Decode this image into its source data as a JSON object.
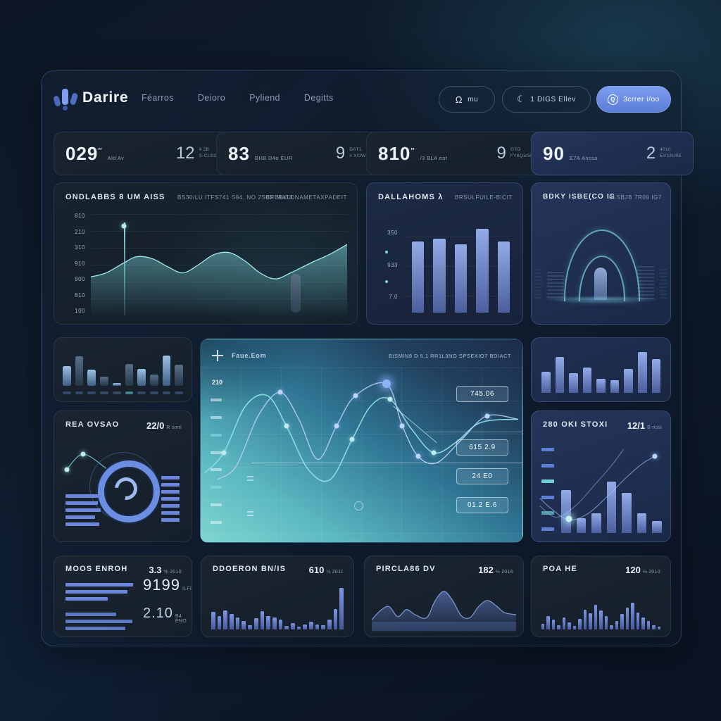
{
  "brand": {
    "name": "Darire"
  },
  "nav": {
    "items": [
      {
        "label": "Féarros"
      },
      {
        "label": "Deioro"
      },
      {
        "label": "Pyliend"
      },
      {
        "label": "Degitts"
      }
    ]
  },
  "actions": {
    "btn1": {
      "icon": "omega-icon",
      "glyph": "Ω",
      "label": "mu"
    },
    "btn2": {
      "icon": "cloud-icon",
      "glyph": "☾",
      "label": "1 DIGS Ellev"
    },
    "btn3": {
      "icon": "q-circle-icon",
      "glyph": "Q",
      "label": "3crrer i/oo"
    }
  },
  "stats": [
    {
      "value": "029",
      "sup": "″",
      "label": "Ald Av",
      "side_value": "12",
      "side_line1": "4 2B",
      "side_line2": "S-CLS3d"
    },
    {
      "value": "83",
      "sup": "",
      "label": "BHB D4o EUR",
      "side_value": "9",
      "side_line1": "DAT1",
      "side_line2": "# XI3WB"
    },
    {
      "value": "810",
      "sup": "″",
      "label": "/3 BLA ent",
      "side_value": "9",
      "side_line1": "GTO",
      "side_line2": "FY6Q3/5U"
    },
    {
      "value": "90",
      "sup": "",
      "label": "E7A Anssa",
      "side_value": "2",
      "side_line1": "4010",
      "side_line2": "EV18UffE"
    }
  ],
  "trend_card": {
    "title": "ONDLABBS 8 UM AISS",
    "meta1": "BS30/LU ITFS741 S94. NO 2S03 3RXLD",
    "meta2": "BRIMAT8 NAMETAXPADEIT"
  },
  "volume_card": {
    "title": "DALLAHOMS λ",
    "meta": "BRSULFUILE-BICIT"
  },
  "arch_card": {
    "title": "BDKY ISBE(CO IS",
    "meta": "BLSBJB 7R09 IG7"
  },
  "gauge_card": {
    "title": "REA OVSAO",
    "value": "22/0",
    "unit": "R smti"
  },
  "flow_card": {
    "title": "Faue.Eom",
    "meta": "BISMIN8 D 5.1 RR1L3NO SPSEXIO7 BDIACT",
    "ylabel": "210",
    "badges": [
      "745.06",
      "615 2.9",
      "24 E0",
      "01.2 E.6"
    ]
  },
  "stoxx_card": {
    "title": "280 OKI STOXI",
    "value": "12/1",
    "unit": "B nssi"
  },
  "bottom_cards": [
    {
      "title": "MOOS ENROH",
      "value": "3.3",
      "unit": "% 2010",
      "stat1": "9199",
      "stat1_unit": "ILFl",
      "stat2": "2.10",
      "stat2_unit": "B4 ENO"
    },
    {
      "title": "DDOERON BN/IS",
      "value": "610",
      "unit": "⅛ 2011"
    },
    {
      "title": "PIRCLA86 DV",
      "value": "182",
      "unit": "⅓ 2016"
    },
    {
      "title": "POA HE",
      "value": "120",
      "unit": "⅛ 2010"
    }
  ],
  "colors": {
    "accent_blue": "#6b8ee2",
    "accent_teal": "#7fd9dc",
    "primary_button": "#6c8fe6"
  },
  "chart_data": {
    "trend": {
      "type": "area",
      "yticks": [
        "810",
        "210",
        "310",
        "910",
        "900",
        "810",
        "100"
      ],
      "points": [
        [
          0,
          62
        ],
        [
          6,
          58
        ],
        [
          13,
          48
        ],
        [
          18,
          42
        ],
        [
          24,
          44
        ],
        [
          30,
          52
        ],
        [
          36,
          58
        ],
        [
          42,
          50
        ],
        [
          48,
          40
        ],
        [
          54,
          38
        ],
        [
          60,
          46
        ],
        [
          66,
          58
        ],
        [
          72,
          64
        ],
        [
          78,
          58
        ],
        [
          86,
          48
        ],
        [
          93,
          40
        ],
        [
          100,
          30
        ]
      ],
      "highlight_x": 13,
      "highlight_dot": [
        [
          13,
          12
        ]
      ],
      "bar": {
        "x": 78,
        "w": 3.5,
        "h": 38
      }
    },
    "volume": {
      "type": "bar",
      "yticks": [
        "350",
        "933",
        "7.0"
      ],
      "values": [
        72,
        75,
        69,
        85,
        72
      ]
    },
    "mini_left": {
      "type": "bar",
      "values": [
        52,
        78,
        42,
        25,
        8,
        58,
        44,
        30,
        80,
        56
      ]
    },
    "mini_right": {
      "type": "bar",
      "values": [
        45,
        78,
        42,
        55,
        30,
        28,
        52,
        88,
        72
      ]
    },
    "gauge": {
      "line": [
        [
          9,
          45
        ],
        [
          21,
          33
        ],
        [
          38,
          44
        ]
      ],
      "dots": [
        [
          9,
          45
        ],
        [
          21,
          33
        ]
      ],
      "left_bars": [
        100,
        92,
        100,
        84,
        95
      ],
      "right_bars": [
        100,
        100,
        100,
        100,
        100,
        100,
        100
      ]
    },
    "flow": {
      "type": "line",
      "teal": [
        [
          0,
          62
        ],
        [
          6,
          50
        ],
        [
          13,
          22
        ],
        [
          20,
          16
        ],
        [
          26,
          34
        ],
        [
          33,
          60
        ],
        [
          40,
          66
        ],
        [
          47,
          42
        ],
        [
          53,
          22
        ],
        [
          59,
          18
        ],
        [
          66,
          36
        ],
        [
          73,
          50
        ],
        [
          80,
          44
        ],
        [
          88,
          32
        ],
        [
          100,
          30
        ]
      ],
      "blue": [
        [
          4,
          66
        ],
        [
          10,
          58
        ],
        [
          17,
          28
        ],
        [
          24,
          14
        ],
        [
          30,
          30
        ],
        [
          36,
          54
        ],
        [
          42,
          34
        ],
        [
          48,
          16
        ],
        [
          58,
          9
        ],
        [
          63,
          34
        ],
        [
          68,
          52
        ],
        [
          74,
          56
        ],
        [
          82,
          42
        ],
        [
          90,
          28
        ],
        [
          100,
          30
        ]
      ],
      "teal_dots": [
        [
          6,
          50
        ],
        [
          26,
          34
        ],
        [
          47,
          42
        ],
        [
          59,
          18
        ],
        [
          73,
          50
        ]
      ],
      "blue_dots": [
        [
          24,
          14
        ],
        [
          42,
          34
        ],
        [
          48,
          16
        ],
        [
          63,
          34
        ],
        [
          68,
          52
        ],
        [
          90,
          28
        ]
      ],
      "big_dot": [
        [
          58,
          9
        ]
      ],
      "callout": [
        [
          60,
          22
        ],
        [
          74,
          44
        ]
      ],
      "dash_count": 8
    },
    "stoxx": {
      "type": "bar",
      "values": [
        52,
        18,
        24,
        62,
        48,
        24,
        14
      ],
      "dash_count": 6,
      "curve1": [
        [
          2,
          62
        ],
        [
          12,
          74
        ],
        [
          25,
          85
        ],
        [
          40,
          78
        ],
        [
          55,
          60
        ],
        [
          70,
          40
        ],
        [
          82,
          26
        ],
        [
          92,
          18
        ]
      ],
      "curve2": [
        [
          2,
          70
        ],
        [
          15,
          82
        ],
        [
          30,
          70
        ],
        [
          45,
          48
        ],
        [
          58,
          28
        ],
        [
          68,
          10
        ]
      ],
      "end_dot": [
        [
          92,
          18
        ]
      ],
      "glow_dot": [
        [
          25,
          84
        ]
      ]
    },
    "moos": {
      "group1": [
        96,
        88,
        60
      ],
      "group2": [
        72,
        95,
        85
      ]
    },
    "ddoeron": {
      "type": "bar",
      "values": [
        40,
        30,
        44,
        36,
        28,
        20,
        10,
        26,
        42,
        30,
        28,
        22,
        8,
        14,
        6,
        12,
        18,
        12,
        10,
        22,
        46,
        95
      ]
    },
    "pircla": {
      "type": "area",
      "points": [
        [
          0,
          78
        ],
        [
          6,
          60
        ],
        [
          12,
          52
        ],
        [
          18,
          72
        ],
        [
          24,
          58
        ],
        [
          30,
          68
        ],
        [
          38,
          74
        ],
        [
          44,
          40
        ],
        [
          50,
          22
        ],
        [
          56,
          40
        ],
        [
          62,
          70
        ],
        [
          68,
          74
        ],
        [
          74,
          52
        ],
        [
          80,
          40
        ],
        [
          86,
          50
        ],
        [
          92,
          64
        ],
        [
          100,
          68
        ]
      ]
    },
    "poa": {
      "type": "bar",
      "values": [
        12,
        30,
        22,
        10,
        26,
        16,
        8,
        24,
        44,
        36,
        55,
        42,
        30,
        10,
        18,
        34,
        48,
        60,
        38,
        26,
        18,
        10,
        6
      ]
    }
  }
}
